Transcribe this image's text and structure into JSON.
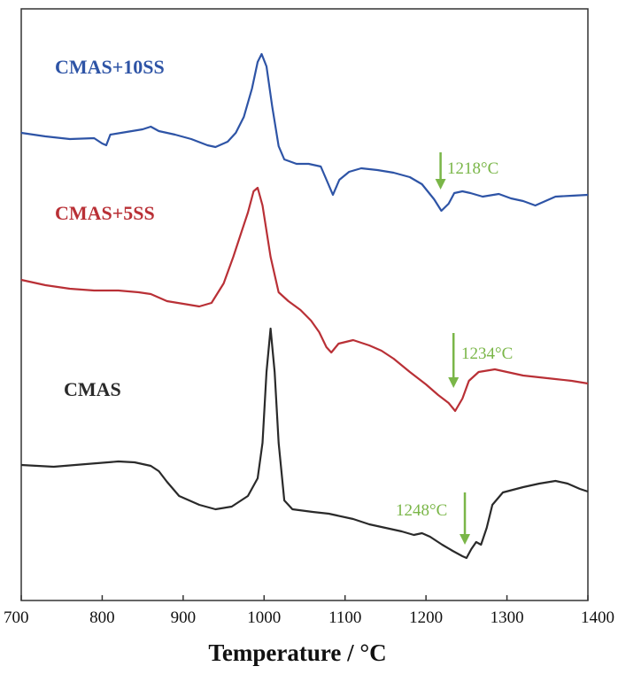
{
  "chart_data": {
    "type": "line",
    "title": "",
    "xlabel": "Temperature / °C",
    "ylabel": "",
    "xlim": [
      700,
      1400
    ],
    "x_ticks": [
      700,
      800,
      900,
      1000,
      1100,
      1200,
      1300,
      1400
    ],
    "grid": false,
    "series": [
      {
        "name": "CMAS+10SS",
        "color": "#2e54a6",
        "points": [
          [
            700,
            150
          ],
          [
            730,
            154
          ],
          [
            760,
            157
          ],
          [
            790,
            156
          ],
          [
            800,
            162
          ],
          [
            805,
            164
          ],
          [
            810,
            152
          ],
          [
            830,
            149
          ],
          [
            850,
            146
          ],
          [
            860,
            143
          ],
          [
            870,
            148
          ],
          [
            890,
            152
          ],
          [
            910,
            157
          ],
          [
            930,
            164
          ],
          [
            940,
            166
          ],
          [
            955,
            160
          ],
          [
            965,
            150
          ],
          [
            975,
            132
          ],
          [
            985,
            100
          ],
          [
            992,
            70
          ],
          [
            997,
            61
          ],
          [
            1003,
            75
          ],
          [
            1010,
            120
          ],
          [
            1018,
            165
          ],
          [
            1025,
            180
          ],
          [
            1040,
            185
          ],
          [
            1055,
            185
          ],
          [
            1070,
            188
          ],
          [
            1078,
            205
          ],
          [
            1085,
            220
          ],
          [
            1093,
            203
          ],
          [
            1105,
            194
          ],
          [
            1120,
            190
          ],
          [
            1140,
            192
          ],
          [
            1160,
            195
          ],
          [
            1180,
            200
          ],
          [
            1195,
            208
          ],
          [
            1210,
            225
          ],
          [
            1219,
            238
          ],
          [
            1228,
            230
          ],
          [
            1235,
            218
          ],
          [
            1245,
            216
          ],
          [
            1255,
            218
          ],
          [
            1270,
            222
          ],
          [
            1290,
            219
          ],
          [
            1305,
            224
          ],
          [
            1320,
            227
          ],
          [
            1335,
            232
          ],
          [
            1345,
            228
          ],
          [
            1360,
            222
          ],
          [
            1380,
            221
          ],
          [
            1400,
            220
          ]
        ]
      },
      {
        "name": "CMAS+5SS",
        "color": "#b93036",
        "points": [
          [
            700,
            316
          ],
          [
            730,
            322
          ],
          [
            760,
            326
          ],
          [
            790,
            328
          ],
          [
            805,
            328
          ],
          [
            820,
            328
          ],
          [
            845,
            330
          ],
          [
            860,
            332
          ],
          [
            880,
            340
          ],
          [
            900,
            343
          ],
          [
            920,
            346
          ],
          [
            935,
            342
          ],
          [
            950,
            320
          ],
          [
            962,
            290
          ],
          [
            972,
            262
          ],
          [
            980,
            240
          ],
          [
            987,
            216
          ],
          [
            992,
            212
          ],
          [
            998,
            232
          ],
          [
            1008,
            290
          ],
          [
            1018,
            330
          ],
          [
            1030,
            340
          ],
          [
            1045,
            350
          ],
          [
            1058,
            362
          ],
          [
            1068,
            375
          ],
          [
            1077,
            392
          ],
          [
            1083,
            398
          ],
          [
            1092,
            388
          ],
          [
            1110,
            384
          ],
          [
            1130,
            390
          ],
          [
            1145,
            396
          ],
          [
            1160,
            405
          ],
          [
            1180,
            420
          ],
          [
            1200,
            434
          ],
          [
            1215,
            446
          ],
          [
            1228,
            455
          ],
          [
            1236,
            464
          ],
          [
            1245,
            450
          ],
          [
            1253,
            430
          ],
          [
            1265,
            420
          ],
          [
            1285,
            417
          ],
          [
            1300,
            420
          ],
          [
            1320,
            424
          ],
          [
            1340,
            426
          ],
          [
            1360,
            428
          ],
          [
            1380,
            430
          ],
          [
            1400,
            433
          ]
        ]
      },
      {
        "name": "CMAS",
        "color": "#2a2a2a",
        "points": [
          [
            700,
            525
          ],
          [
            740,
            527
          ],
          [
            780,
            524
          ],
          [
            820,
            521
          ],
          [
            840,
            522
          ],
          [
            860,
            526
          ],
          [
            870,
            532
          ],
          [
            880,
            544
          ],
          [
            895,
            560
          ],
          [
            920,
            570
          ],
          [
            940,
            575
          ],
          [
            960,
            572
          ],
          [
            980,
            560
          ],
          [
            992,
            540
          ],
          [
            998,
            500
          ],
          [
            1003,
            420
          ],
          [
            1008,
            371
          ],
          [
            1013,
            420
          ],
          [
            1018,
            500
          ],
          [
            1025,
            565
          ],
          [
            1035,
            575
          ],
          [
            1060,
            578
          ],
          [
            1080,
            580
          ],
          [
            1110,
            586
          ],
          [
            1130,
            592
          ],
          [
            1150,
            596
          ],
          [
            1170,
            600
          ],
          [
            1185,
            604
          ],
          [
            1195,
            602
          ],
          [
            1205,
            606
          ],
          [
            1220,
            615
          ],
          [
            1233,
            622
          ],
          [
            1245,
            628
          ],
          [
            1250,
            630
          ],
          [
            1256,
            620
          ],
          [
            1262,
            612
          ],
          [
            1268,
            615
          ],
          [
            1275,
            596
          ],
          [
            1282,
            570
          ],
          [
            1295,
            556
          ],
          [
            1320,
            550
          ],
          [
            1340,
            546
          ],
          [
            1360,
            543
          ],
          [
            1375,
            546
          ],
          [
            1390,
            552
          ],
          [
            1400,
            555
          ]
        ]
      }
    ],
    "series_labels": [
      {
        "text": "CMAS+10SS",
        "color": "#2e54a6"
      },
      {
        "text": "CMAS+5SS",
        "color": "#b93036"
      },
      {
        "text": "CMAS",
        "color": "#2a2a2a"
      }
    ],
    "annotations": [
      {
        "text": "1218°C",
        "x": 1218,
        "color": "#7ab648"
      },
      {
        "text": "1234°C",
        "x": 1234,
        "color": "#7ab648"
      },
      {
        "text": "1248°C",
        "x": 1248,
        "color": "#7ab648"
      }
    ]
  }
}
